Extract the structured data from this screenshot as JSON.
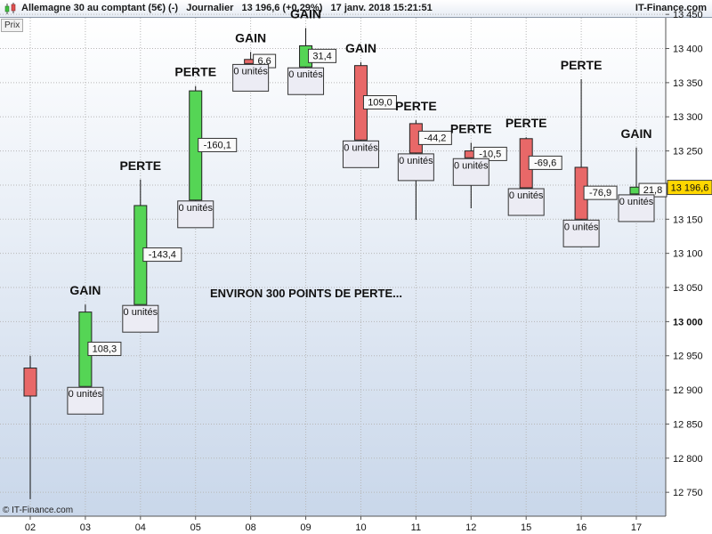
{
  "header": {
    "title": "Allemagne 30 au comptant (5€) (-)   Journalier   13 196,6 (+0,29%)   17 janv. 2018 15:21:51",
    "brand": "IT-Finance.com",
    "panel_label": "Prix",
    "copyright": "© IT-Finance.com"
  },
  "colors": {
    "bull": "#55d555",
    "bear": "#e86868",
    "plot_bg_top": "#ffffff",
    "plot_bg_bottom": "#c9d7ea",
    "current_price_bg": "#ffd700"
  },
  "chart_data": {
    "type": "candlestick",
    "ylim": [
      12715,
      13445
    ],
    "y_ticks": [
      {
        "value": 12750,
        "label": "12 750",
        "bold": false
      },
      {
        "value": 12800,
        "label": "12 800",
        "bold": false
      },
      {
        "value": 12850,
        "label": "12 850",
        "bold": false
      },
      {
        "value": 12900,
        "label": "12 900",
        "bold": false
      },
      {
        "value": 12950,
        "label": "12 950",
        "bold": false
      },
      {
        "value": 13000,
        "label": "13 000",
        "bold": true
      },
      {
        "value": 13050,
        "label": "13 050",
        "bold": false
      },
      {
        "value": 13100,
        "label": "13 100",
        "bold": false
      },
      {
        "value": 13150,
        "label": "13 150",
        "bold": false
      },
      {
        "value": 13200,
        "label": "13 200",
        "bold": false
      },
      {
        "value": 13250,
        "label": "13 250",
        "bold": false
      },
      {
        "value": 13300,
        "label": "13 300",
        "bold": false
      },
      {
        "value": 13350,
        "label": "13 350",
        "bold": false
      },
      {
        "value": 13400,
        "label": "13 400",
        "bold": false
      },
      {
        "value": 13450,
        "label": "13 450",
        "bold": false
      }
    ],
    "current_price": {
      "value": 13196.6,
      "label": "13 196,6"
    },
    "candles": [
      {
        "x": "02",
        "open": 12932,
        "high": 12950,
        "low": 12740,
        "close": 12891,
        "change_label": "",
        "units_label": "",
        "tag": ""
      },
      {
        "x": "03",
        "open": 12905,
        "high": 13025,
        "low": 12905,
        "close": 13014,
        "change_label": "108,3",
        "units_label": "0 unités",
        "tag": "GAIN"
      },
      {
        "x": "04",
        "open": 13025,
        "high": 13208,
        "low": 13025,
        "close": 13170,
        "change_label": "-143,4",
        "units_label": "0 unités",
        "tag": "PERTE"
      },
      {
        "x": "05",
        "open": 13178,
        "high": 13345,
        "low": 13175,
        "close": 13338,
        "change_label": "-160,1",
        "units_label": "0 unités",
        "tag": "PERTE"
      },
      {
        "x": "08",
        "open": 13384,
        "high": 13395,
        "low": 13378,
        "close": 13378,
        "change_label": "6,6",
        "units_label": "0 unités",
        "tag": "GAIN"
      },
      {
        "x": "09",
        "open": 13373,
        "high": 13430,
        "low": 13369,
        "close": 13404,
        "change_label": "31,4",
        "units_label": "0 unités",
        "tag": "GAIN"
      },
      {
        "x": "10",
        "open": 13375,
        "high": 13380,
        "low": 13265,
        "close": 13266,
        "change_label": "109,0",
        "units_label": "0 unités",
        "tag": "GAIN"
      },
      {
        "x": "11",
        "open": 13290,
        "high": 13295,
        "low": 13149,
        "close": 13247,
        "change_label": "-44,2",
        "units_label": "0 unités",
        "tag": "PERTE"
      },
      {
        "x": "12",
        "open": 13250,
        "high": 13262,
        "low": 13166,
        "close": 13240,
        "change_label": "-10,5",
        "units_label": "0 unités",
        "tag": "PERTE"
      },
      {
        "x": "15",
        "open": 13268,
        "high": 13270,
        "low": 13195,
        "close": 13196,
        "change_label": "-69,6",
        "units_label": "0 unités",
        "tag": "PERTE"
      },
      {
        "x": "16",
        "open": 13226,
        "high": 13355,
        "low": 13149,
        "close": 13150,
        "change_label": "-76,9",
        "units_label": "0 unités",
        "tag": "PERTE"
      },
      {
        "x": "17",
        "open": 13187,
        "high": 13255,
        "low": 13185,
        "close": 13197,
        "change_label": "21,8",
        "units_label": "0 unités",
        "tag": "GAIN"
      }
    ],
    "annotation": "ENVIRON 300 POINTS DE PERTE..."
  }
}
